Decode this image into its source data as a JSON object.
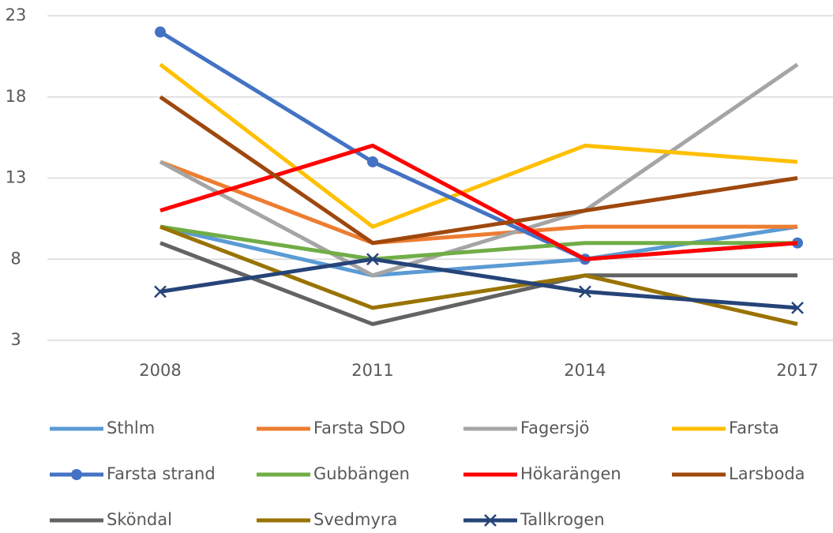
{
  "chart_data": {
    "type": "line",
    "categories": [
      "2008",
      "2011",
      "2014",
      "2017"
    ],
    "ylim": [
      3,
      23
    ],
    "yticks": [
      3,
      8,
      13,
      18,
      23
    ],
    "grid": true,
    "legend": "bottom",
    "series": [
      {
        "name": "Sthlm",
        "color": "#5b9bd5",
        "values": [
          10,
          7,
          8,
          10
        ]
      },
      {
        "name": "Farsta SDO",
        "color": "#ed7d31",
        "values": [
          14,
          9,
          10,
          10
        ]
      },
      {
        "name": "Fagersjö",
        "color": "#a5a5a5",
        "values": [
          14,
          7,
          11,
          20
        ]
      },
      {
        "name": "Farsta",
        "color": "#ffc000",
        "values": [
          20,
          10,
          15,
          14
        ]
      },
      {
        "name": "Farsta strand",
        "color": "#4472c4",
        "marker": "circle",
        "values": [
          22,
          14,
          8,
          9
        ]
      },
      {
        "name": "Gubbängen",
        "color": "#70ad47",
        "values": [
          10,
          8,
          9,
          9
        ]
      },
      {
        "name": "Hökarängen",
        "color": "#ff0000",
        "values": [
          11,
          15,
          8,
          9
        ]
      },
      {
        "name": "Larsboda",
        "color": "#9e480e",
        "values": [
          18,
          9,
          11,
          13
        ]
      },
      {
        "name": "Sköndal",
        "color": "#636363",
        "values": [
          9,
          4,
          7,
          7
        ]
      },
      {
        "name": "Svedmyra",
        "color": "#997300",
        "values": [
          10,
          5,
          7,
          4
        ]
      },
      {
        "name": "Tallkrogen",
        "color": "#264478",
        "marker": "x",
        "values": [
          6,
          8,
          6,
          5
        ]
      }
    ]
  }
}
